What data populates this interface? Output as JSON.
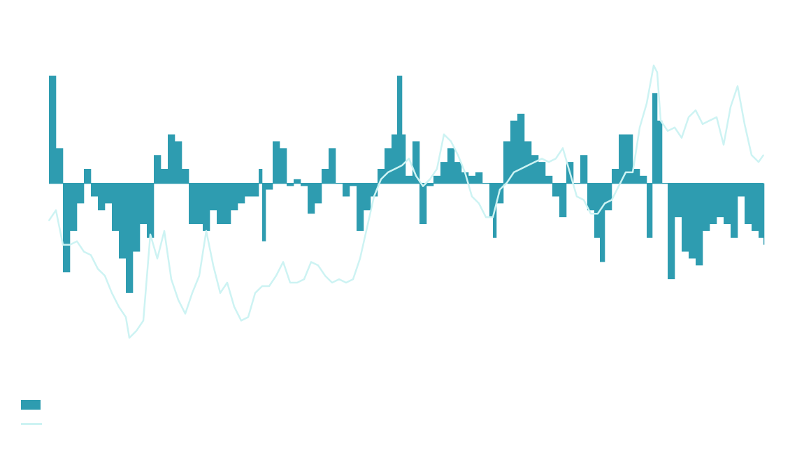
{
  "chart_data": {
    "type": "area",
    "title": "",
    "xlabel": "",
    "ylabel": "",
    "grid": false,
    "axes_visible": false,
    "legend_placement": "bottom-left",
    "xlim": [
      0,
      1022
    ],
    "ylim": [
      -2.3,
      1.9
    ],
    "colors": {
      "bars": "#2e9cb0",
      "line": "#cdf3f3",
      "background": "#ffffff"
    },
    "series": [
      {
        "type": "bar-area",
        "x": [
          0,
          10,
          20,
          30,
          40,
          50,
          60,
          70,
          80,
          90,
          100,
          110,
          120,
          130,
          140,
          150,
          160,
          170,
          180,
          190,
          200,
          210,
          220,
          230,
          240,
          250,
          260,
          270,
          280,
          290,
          300,
          305,
          310,
          320,
          330,
          340,
          350,
          360,
          370,
          380,
          390,
          400,
          410,
          420,
          430,
          440,
          450,
          460,
          470,
          480,
          490,
          498,
          505,
          510,
          520,
          530,
          540,
          550,
          560,
          570,
          580,
          590,
          600,
          610,
          620,
          630,
          635,
          640,
          650,
          660,
          670,
          680,
          690,
          700,
          710,
          720,
          730,
          740,
          750,
          760,
          770,
          780,
          788,
          795,
          805,
          815,
          825,
          835,
          845,
          855,
          863,
          870,
          877,
          885,
          895,
          905,
          915,
          925,
          935,
          945,
          955,
          965,
          975,
          985,
          995,
          1005,
          1015,
          1022
        ],
        "values": [
          1.56,
          0.51,
          -1.29,
          -0.69,
          -0.29,
          0.21,
          -0.19,
          -0.39,
          -0.29,
          -0.69,
          -1.09,
          -1.59,
          -0.99,
          -0.59,
          -0.79,
          0.41,
          0.21,
          0.71,
          0.61,
          0.21,
          -0.59,
          -0.59,
          -0.69,
          -0.39,
          -0.59,
          -0.59,
          -0.39,
          -0.29,
          -0.19,
          -0.19,
          0.21,
          -0.84,
          -0.09,
          0.61,
          0.51,
          -0.04,
          0.06,
          -0.04,
          -0.44,
          -0.29,
          0.21,
          0.51,
          0,
          -0.19,
          -0.04,
          -0.69,
          -0.39,
          -0.19,
          0.21,
          0.51,
          0.71,
          1.56,
          0.71,
          0.11,
          0.61,
          -0.59,
          -0.04,
          0.11,
          0.31,
          0.51,
          0.31,
          0.16,
          0.11,
          0.16,
          0,
          -0.49,
          -0.79,
          -0.29,
          0.61,
          0.91,
          1.01,
          0.61,
          0.41,
          0.31,
          0.11,
          -0.19,
          -0.49,
          0.31,
          0,
          0.41,
          -0.39,
          -0.79,
          -1.14,
          -0.39,
          0.21,
          0.71,
          0.71,
          0.21,
          0.11,
          -0.79,
          1.31,
          0.91,
          0,
          -1.39,
          -0.49,
          -0.99,
          -1.09,
          -1.19,
          -0.69,
          -0.59,
          -0.49,
          -0.59,
          -0.79,
          -0.19,
          -0.59,
          -0.69,
          -0.79,
          -0.89
        ]
      },
      {
        "type": "line",
        "x": [
          0,
          10,
          20,
          30,
          40,
          50,
          60,
          70,
          80,
          90,
          100,
          110,
          115,
          125,
          135,
          145,
          155,
          165,
          175,
          185,
          195,
          205,
          215,
          225,
          235,
          245,
          255,
          265,
          275,
          285,
          295,
          305,
          315,
          325,
          335,
          345,
          355,
          365,
          375,
          385,
          395,
          405,
          415,
          425,
          435,
          445,
          455,
          465,
          475,
          485,
          495,
          505,
          515,
          525,
          535,
          545,
          555,
          565,
          575,
          585,
          595,
          605,
          615,
          625,
          635,
          645,
          655,
          665,
          675,
          685,
          695,
          705,
          715,
          725,
          735,
          745,
          755,
          765,
          775,
          785,
          795,
          805,
          815,
          825,
          835,
          845,
          855,
          865,
          870,
          875,
          885,
          895,
          905,
          915,
          925,
          935,
          945,
          955,
          965,
          975,
          985,
          995,
          1005,
          1015,
          1022
        ],
        "values": [
          -0.54,
          -0.39,
          -0.89,
          -0.89,
          -0.84,
          -0.99,
          -1.04,
          -1.24,
          -1.34,
          -1.59,
          -1.79,
          -1.94,
          -2.24,
          -2.14,
          -1.99,
          -0.74,
          -1.09,
          -0.69,
          -1.39,
          -1.69,
          -1.89,
          -1.59,
          -1.34,
          -0.69,
          -1.19,
          -1.59,
          -1.44,
          -1.79,
          -1.99,
          -1.94,
          -1.59,
          -1.49,
          -1.49,
          -1.34,
          -1.14,
          -1.44,
          -1.44,
          -1.39,
          -1.14,
          -1.19,
          -1.34,
          -1.44,
          -1.39,
          -1.44,
          -1.39,
          -1.09,
          -0.64,
          -0.19,
          0.06,
          0.16,
          0.21,
          0.26,
          0.36,
          0.11,
          -0.04,
          0.06,
          0.21,
          0.71,
          0.61,
          0.41,
          0.16,
          -0.19,
          -0.29,
          -0.49,
          -0.49,
          -0.09,
          0.01,
          0.16,
          0.21,
          0.26,
          0.31,
          0.36,
          0.31,
          0.36,
          0.51,
          0.16,
          -0.19,
          -0.24,
          -0.44,
          -0.44,
          -0.29,
          -0.24,
          -0.04,
          0.16,
          0.16,
          0.81,
          1.16,
          1.71,
          1.61,
          0.91,
          0.76,
          0.81,
          0.66,
          0.96,
          1.06,
          0.86,
          0.91,
          0.96,
          0.56,
          1.11,
          1.41,
          0.86,
          0.41,
          0.31,
          0.41
        ]
      }
    ],
    "legend": [
      {
        "marker": "bar",
        "label": ""
      },
      {
        "marker": "line",
        "label": ""
      }
    ]
  }
}
